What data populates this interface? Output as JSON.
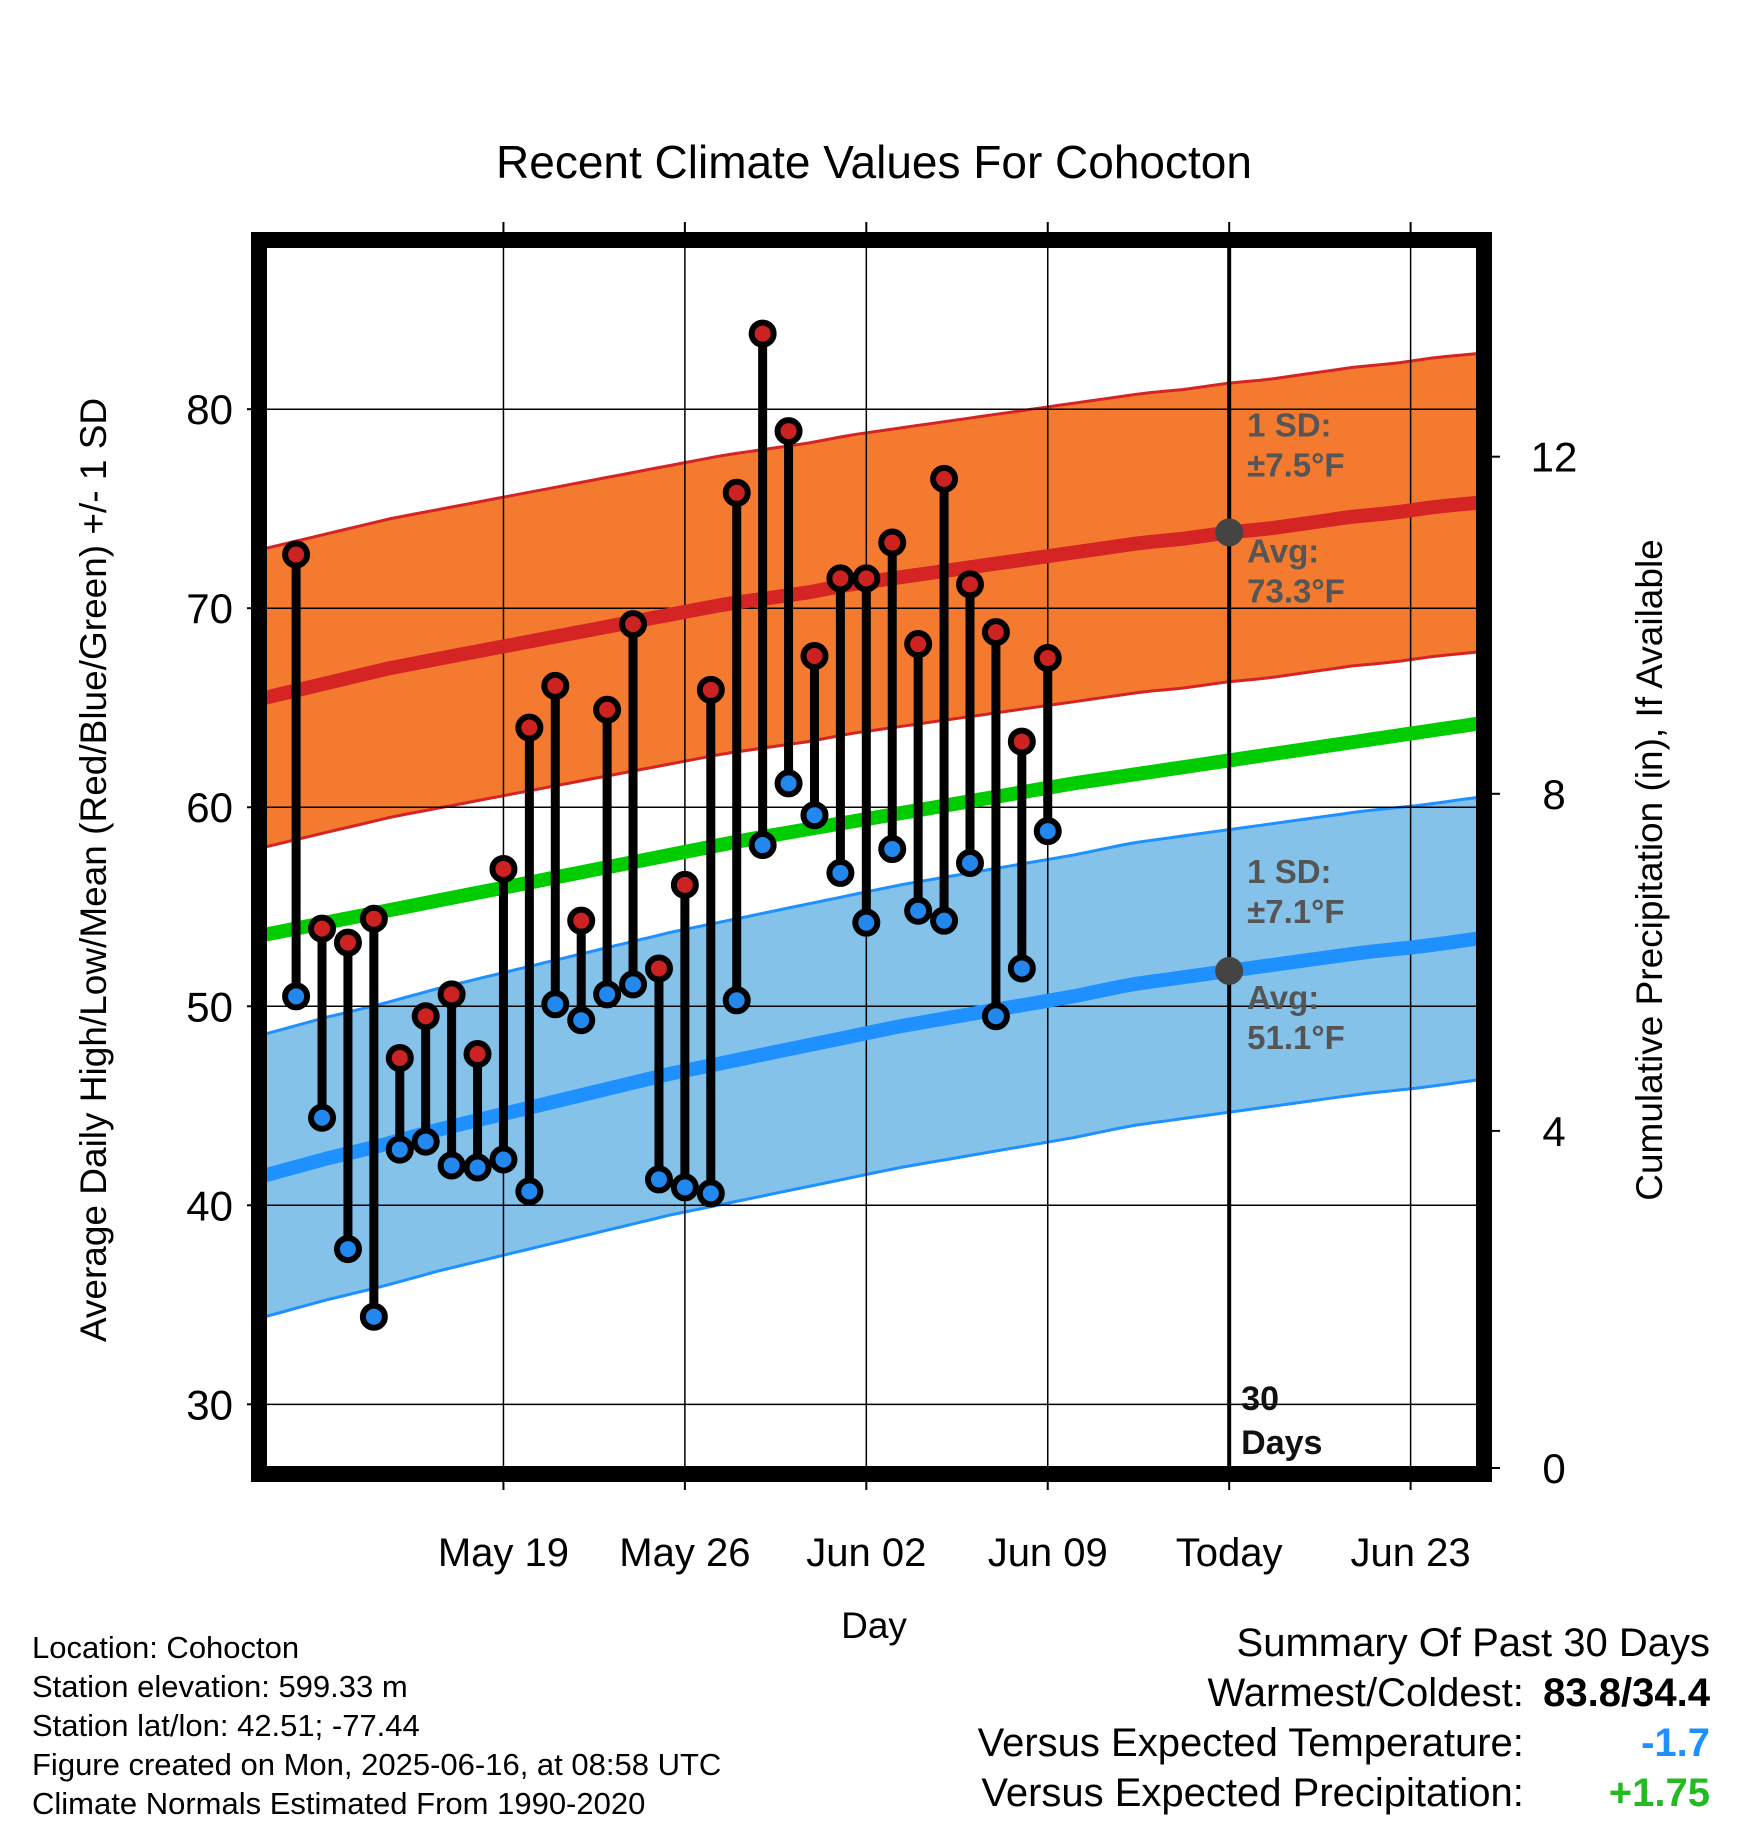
{
  "chart_data": {
    "type": "line",
    "title": "Recent Climate Values For Cohocton",
    "xlabel": "Day",
    "ylabel": "Average Daily High/Low/Mean (Red/Blue/Green) +/- 1 SD",
    "ylabel_right": "Cumulative Precipitation (in), If Available",
    "x_ticks": [
      "May 19",
      "May 26",
      "Jun 02",
      "Jun 09",
      "Today",
      "Jun 23"
    ],
    "y_ticks": [
      "30",
      "40",
      "50",
      "60",
      "70",
      "80"
    ],
    "y2_ticks": [
      "0",
      "4",
      "8",
      "12"
    ],
    "ylim": [
      26.8,
      88.2
    ],
    "y2lim": [
      0,
      14.5
    ],
    "xlim_days": [
      -37.2,
      9.6
    ],
    "grid": true,
    "day_offsets": [
      -36,
      -35,
      -34,
      -33,
      -32,
      -31,
      -30,
      -29,
      -28,
      -27,
      -26,
      -25,
      -24,
      -23,
      -22,
      -21,
      -20,
      -19,
      -18,
      -17,
      -16,
      -15,
      -14,
      -13,
      -12,
      -11,
      -10,
      -9,
      -8,
      -7,
      -6,
      -5,
      -4,
      -3,
      -2,
      -1
    ],
    "observed_high": [
      72.7,
      53.9,
      53.2,
      54.4,
      47.4,
      49.5,
      50.6,
      47.6,
      56.9,
      64.0,
      66.1,
      54.3,
      64.9,
      69.2,
      51.9,
      56.1,
      65.9,
      75.8,
      83.8,
      78.9,
      67.6,
      71.5,
      71.5,
      73.3,
      68.2,
      76.5,
      71.2,
      68.8,
      63.3,
      67.5
    ],
    "observed_low": [
      50.5,
      44.4,
      37.8,
      34.4,
      42.8,
      43.2,
      42.0,
      41.9,
      42.3,
      40.7,
      50.1,
      49.3,
      50.6,
      51.1,
      41.3,
      40.9,
      40.6,
      50.3,
      58.1,
      61.2,
      59.6,
      56.7,
      54.2,
      57.9,
      54.8,
      54.3,
      57.2,
      49.5,
      51.9,
      58.8
    ],
    "normal_high": [
      65.5,
      66.0,
      66.5,
      67.0,
      67.4,
      67.8,
      68.2,
      68.6,
      69.0,
      69.4,
      69.8,
      70.2,
      70.5,
      70.8,
      71.2,
      71.5,
      71.8,
      72.1,
      72.4,
      72.7,
      73.0,
      73.3,
      73.5,
      73.8,
      74.0,
      74.3,
      74.6,
      74.8,
      75.1,
      75.3
    ],
    "high_sd": 7.5,
    "normal_low": [
      41.5,
      42.3,
      43.0,
      43.8,
      44.5,
      45.2,
      45.9,
      46.6,
      47.2,
      47.8,
      48.4,
      49.0,
      49.5,
      50.0,
      50.5,
      51.1,
      51.5,
      51.9,
      52.3,
      52.7,
      53.0,
      53.4
    ],
    "low_sd": 7.1,
    "normal_mean": [
      53.6,
      54.4,
      55.2,
      56.0,
      56.8,
      57.6,
      58.4,
      59.1,
      59.8,
      60.5,
      61.2,
      61.8,
      62.4,
      63.0,
      63.6,
      64.2
    ],
    "cumulative_precip": [
      0.0,
      0.0,
      0.0,
      0.0,
      0.0,
      0.0,
      0.0,
      0.0,
      0.0,
      0.0,
      0.0,
      0.0,
      0.0,
      0.0,
      0.0,
      0.0,
      0.0,
      0.0,
      0.0
    ],
    "annotations": {
      "high_sd_label": "1 SD:",
      "high_sd_value": "±7.5°F",
      "high_avg_label": "Avg:",
      "high_avg_value": "73.3°F",
      "low_sd_label": "1 SD:",
      "low_sd_value": "±7.1°F",
      "low_avg_label": "Avg:",
      "low_avg_value": "51.1°F",
      "window_label_1": "30",
      "window_label_2": "Days"
    },
    "colors": {
      "high_band": "#f47a30",
      "high_line": "#d42424",
      "low_band": "#84c2ea",
      "low_line": "#1e90ff",
      "mean_line": "#00cc00",
      "precip": "#4a9aa5",
      "annotation": "#555555",
      "high_marker": "#cc2222",
      "low_marker": "#2288ee"
    }
  },
  "info": {
    "location": "Location: Cohocton",
    "elevation": "Station elevation: 599.33 m",
    "latlon": "Station lat/lon: 42.51; -77.44",
    "created": "Figure created on Mon, 2025-06-16, at 08:58 UTC",
    "normals": "Climate Normals Estimated From 1990-2020"
  },
  "summary": {
    "title": "Summary Of Past 30 Days",
    "warm_cold_label": "Warmest/Coldest:",
    "warm_cold_value": "83.8/34.4",
    "temp_label": "Versus Expected Temperature:",
    "temp_value": "-1.7",
    "precip_label": "Versus Expected Precipitation:",
    "precip_value": "+1.75"
  }
}
